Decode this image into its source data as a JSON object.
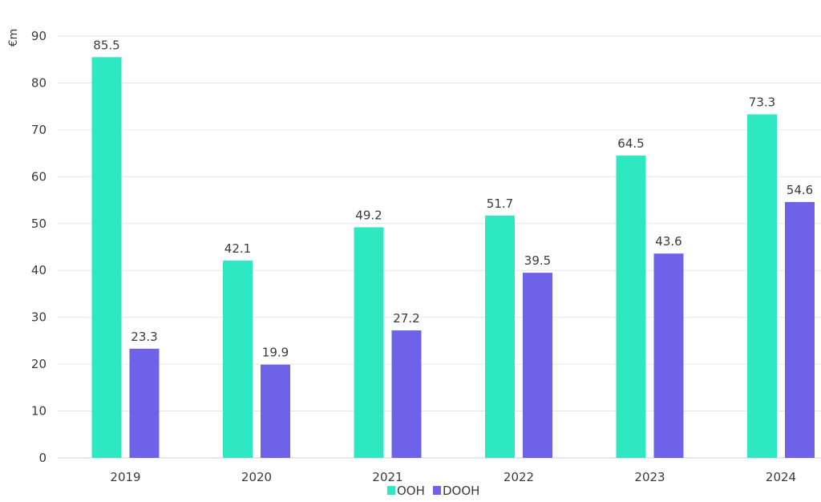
{
  "chart_data": {
    "type": "bar",
    "ylabel": "€m",
    "ylim": [
      0,
      90
    ],
    "yticks": [
      0,
      10,
      20,
      30,
      40,
      50,
      60,
      70,
      80,
      90
    ],
    "grid": true,
    "legend_position": "bottom",
    "categories": [
      "2019",
      "2020",
      "2021",
      "2022",
      "2023",
      "2024"
    ],
    "series": [
      {
        "name": "OOH",
        "color": "#2de8c0",
        "values": [
          85.5,
          42.1,
          49.2,
          51.7,
          64.5,
          73.3
        ],
        "labels": [
          "85.5",
          "42.1",
          "49.2",
          "51.7",
          "64.5",
          "73.3"
        ]
      },
      {
        "name": "DOOH",
        "color": "#6e62e8",
        "values": [
          23.3,
          19.9,
          27.2,
          39.5,
          43.6,
          54.6
        ],
        "labels": [
          "23.3",
          "19.9",
          "27.2",
          "39.5",
          "43.6",
          "54.6"
        ]
      }
    ]
  }
}
